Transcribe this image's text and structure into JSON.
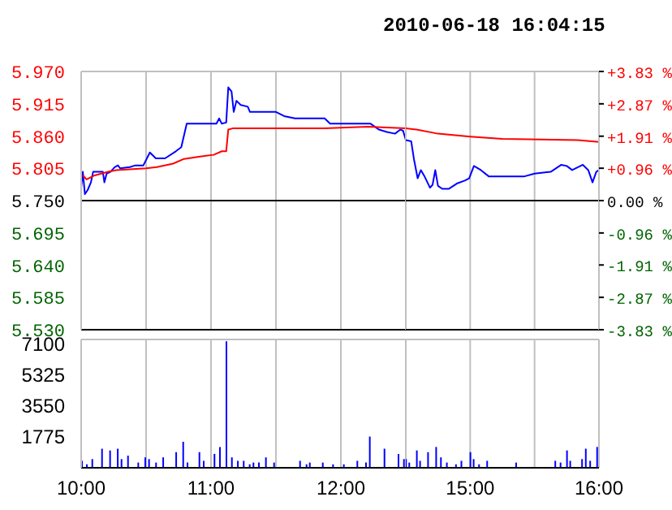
{
  "chart_data": [
    {
      "type": "line",
      "grid": true,
      "tick_labels": "y",
      "xlim": [
        10,
        12.5
      ],
      "xticks": [
        10,
        10.5,
        11,
        11.5,
        12
      ],
      "ylim": [
        5.53,
        5.97
      ],
      "yticks": [
        {
          "value": 5.97,
          "label": "5.970"
        },
        {
          "value": 5.915,
          "label": "5.915"
        },
        {
          "value": 5.86,
          "label": "5.860"
        },
        {
          "value": 5.805,
          "label": "5.805"
        },
        {
          "value": 5.75,
          "label": "5.750"
        },
        {
          "value": 5.695,
          "label": "5.695"
        },
        {
          "value": 5.64,
          "label": "5.640"
        },
        {
          "value": 5.585,
          "label": "5.585"
        },
        {
          "value": 5.53,
          "label": "5.530"
        }
      ],
      "ref_lines": [
        {
          "axis": "y",
          "value": 5.75,
          "color": "#000000"
        }
      ],
      "series": [
        {
          "color": "#0000ff",
          "x": [
            10,
            10.013,
            10.029,
            10.05,
            10.075,
            10.092,
            10.167,
            10.179,
            10.196,
            10.225,
            10.258,
            10.283,
            10.3,
            10.375,
            10.417,
            10.479,
            10.529,
            10.575,
            10.646,
            10.729,
            10.771,
            10.813,
            11.042,
            11.063,
            11.083,
            11.117,
            11.133,
            11.158,
            11.175,
            11.196,
            11.229,
            11.283,
            11.3,
            11.5,
            11.563,
            11.646,
            11.875,
            11.917,
            12.229,
            12.292,
            12.354,
            12.417,
            12.458,
            12.479,
            12.5
          ],
          "values": [
            5.772,
            5.799,
            5.761,
            5.768,
            5.781,
            5.799,
            5.799,
            5.781,
            5.796,
            5.799,
            5.807,
            5.81,
            5.805,
            5.807,
            5.81,
            5.81,
            5.832,
            5.822,
            5.822,
            5.834,
            5.841,
            5.881,
            5.881,
            5.89,
            5.881,
            5.883,
            5.943,
            5.936,
            5.901,
            5.92,
            5.913,
            5.91,
            5.901,
            5.901,
            5.894,
            5.89,
            5.89,
            5.881,
            5.881,
            5.871,
            5.867,
            5.864,
            5.871,
            5.869,
            5.853
          ]
        },
        {
          "color": "#ff0000",
          "x": [
            10.013,
            10.042,
            10.104,
            10.208,
            10.271,
            10.5,
            10.583,
            10.708,
            10.792,
            10.917,
            11.021,
            11.083,
            11.117,
            11.133,
            11.167,
            11.875,
            12.208,
            12.5
          ],
          "values": [
            5.793,
            5.786,
            5.793,
            5.799,
            5.802,
            5.805,
            5.807,
            5.813,
            5.821,
            5.825,
            5.828,
            5.834,
            5.834,
            5.871,
            5.873,
            5.873,
            5.876,
            5.873
          ]
        }
      ]
    },
    {
      "type": "line",
      "title": "2010-06-18 16:04:15",
      "grid": true,
      "tick_labels": "y",
      "xlim": [
        14.5,
        16
      ],
      "xticks": [
        14.5,
        15,
        15.5,
        16
      ],
      "ylim": [
        5.53,
        5.97
      ],
      "y2lim": [
        -3.83,
        3.83
      ],
      "y2ticks": [
        {
          "value": 3.83,
          "label": "+3.83 %"
        },
        {
          "value": 2.87,
          "label": "+2.87 %"
        },
        {
          "value": 1.91,
          "label": "+1.91 %"
        },
        {
          "value": 0.96,
          "label": "+0.96 %"
        },
        {
          "value": 0,
          "label": "0.00 %"
        },
        {
          "value": -0.96,
          "label": "-0.96 %"
        },
        {
          "value": -1.91,
          "label": "-1.91 %"
        },
        {
          "value": -2.87,
          "label": "-2.87 %"
        },
        {
          "value": -3.83,
          "label": "-3.83 %"
        }
      ],
      "ref_lines": [
        {
          "axis": "y",
          "value": 5.75,
          "color": "#000000"
        }
      ],
      "series": [
        {
          "color": "#0000ff",
          "x": [
            14.5,
            14.542,
            14.563,
            14.592,
            14.617,
            14.646,
            14.688,
            14.708,
            14.729,
            14.75,
            14.783,
            14.833,
            14.896,
            14.958,
            14.992,
            15.029,
            15.083,
            15.146,
            15.417,
            15.5,
            15.625,
            15.708,
            15.75,
            15.792,
            15.875,
            15.917,
            15.95,
            15.979,
            16.0
          ],
          "values": [
            5.853,
            5.851,
            5.821,
            5.788,
            5.802,
            5.791,
            5.772,
            5.777,
            5.802,
            5.775,
            5.77,
            5.77,
            5.779,
            5.784,
            5.788,
            5.809,
            5.802,
            5.791,
            5.791,
            5.796,
            5.799,
            5.811,
            5.809,
            5.802,
            5.811,
            5.802,
            5.781,
            5.799,
            5.802
          ]
        },
        {
          "color": "#ff0000",
          "x": [
            14.5,
            14.583,
            14.75,
            15,
            15.25,
            15.833,
            16
          ],
          "values": [
            5.873,
            5.871,
            5.864,
            5.859,
            5.855,
            5.853,
            5.85
          ]
        }
      ]
    },
    {
      "type": "bar",
      "grid": true,
      "color": "#0000ff",
      "xlim": [
        10,
        12.5
      ],
      "xticks": [
        {
          "value": 10,
          "label": "10:00"
        },
        {
          "value": 10.5,
          "label": null
        },
        {
          "value": 11,
          "label": "11:00"
        },
        {
          "value": 11.5,
          "label": null
        },
        {
          "value": 12,
          "label": "12:00"
        },
        {
          "value": 12.5,
          "label": null
        }
      ],
      "ylim": [
        0,
        7400
      ],
      "yticks": [
        1775,
        3550,
        5325,
        7100
      ],
      "x": [
        10.013,
        10.05,
        10.092,
        10.167,
        10.229,
        10.288,
        10.317,
        10.367,
        10.446,
        10.5,
        10.529,
        10.583,
        10.638,
        10.738,
        10.792,
        10.825,
        10.917,
        10.95,
        11.033,
        11.075,
        11.125,
        11.167,
        11.213,
        11.258,
        11.304,
        11.333,
        11.375,
        11.429,
        11.492,
        11.692,
        11.742,
        11.767,
        11.867,
        11.946,
        12.029,
        12.133,
        12.2,
        12.229,
        12.342,
        12.45,
        12.492
      ],
      "values": [
        400,
        200,
        500,
        1100,
        1000,
        1100,
        500,
        700,
        300,
        600,
        500,
        300,
        600,
        900,
        1500,
        300,
        900,
        400,
        800,
        1200,
        7300,
        600,
        400,
        400,
        200,
        300,
        300,
        600,
        300,
        400,
        200,
        300,
        300,
        200,
        200,
        400,
        300,
        1800,
        1100,
        800,
        500
      ]
    },
    {
      "type": "bar",
      "grid": true,
      "color": "#0000ff",
      "tick_labels": "x",
      "xlim": [
        14.5,
        16
      ],
      "xticks": [
        {
          "value": 14.5,
          "label": null
        },
        {
          "value": 15,
          "label": "15:00"
        },
        {
          "value": 15.5,
          "label": null
        },
        {
          "value": 16,
          "label": "16:00"
        }
      ],
      "ylim": [
        0,
        7400
      ],
      "x": [
        14.508,
        14.533,
        14.592,
        14.617,
        14.679,
        14.742,
        14.779,
        14.825,
        14.896,
        14.938,
        15.008,
        15.033,
        15.075,
        15.138,
        15.363,
        15.667,
        15.708,
        15.758,
        15.783,
        15.875,
        15.904,
        15.938,
        15.992
      ],
      "values": [
        500,
        300,
        1000,
        400,
        900,
        1200,
        600,
        300,
        200,
        400,
        900,
        500,
        200,
        400,
        300,
        400,
        300,
        1000,
        400,
        500,
        1100,
        400,
        1200
      ]
    }
  ]
}
